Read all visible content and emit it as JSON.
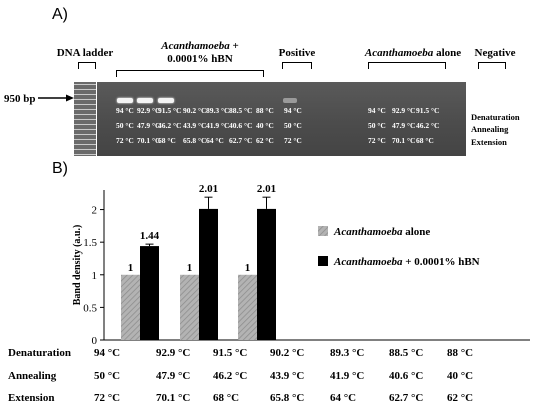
{
  "panel_a": {
    "label": "A)",
    "marker": "950 bp",
    "headers": {
      "ladder": "DNA ladder",
      "treated_line1": "Acanthamoeba",
      "treated_line1_suffix": " +",
      "treated_line2": "0.0001% hBN",
      "positive": "Positive",
      "alone": "Acanthamoeba",
      "alone_suffix": " alone",
      "negative": "Negative"
    },
    "row_labels": [
      "Denaturation",
      "Annealing",
      "Extension"
    ],
    "treated_lanes": {
      "denaturation": [
        "94 °C",
        "92.9 °C",
        "91.5 °C",
        "90.2 °C",
        "89.3 °C",
        "88.5 °C",
        "88 °C"
      ],
      "annealing": [
        "50 °C",
        "47.9 °C",
        "46.2 °C",
        "43.9 °C",
        "41.9 °C",
        "40.6 °C",
        "40 °C"
      ],
      "extension": [
        "72 °C",
        "70.1 °C",
        "68 °C",
        "65.8 °C",
        "64 °C",
        "62.7 °C",
        "62 °C"
      ]
    },
    "positive_lane": [
      "94 °C",
      "50 °C",
      "72 °C"
    ],
    "alone_lanes": {
      "denaturation": [
        "94 °C",
        "92.9 °C",
        "91.5 °C"
      ],
      "annealing": [
        "50 °C",
        "47.9 °C",
        "46.2 °C"
      ],
      "extension": [
        "72 °C",
        "70.1 °C",
        "68 °C"
      ]
    }
  },
  "panel_b": {
    "label": "B)",
    "table_rows": [
      {
        "label": "Denaturation",
        "values": [
          "94 °C",
          "92.9 °C",
          "91.5 °C",
          "90.2 °C",
          "89.3 °C",
          "88.5 °C",
          "88 °C"
        ]
      },
      {
        "label": "Annealing",
        "values": [
          "50 °C",
          "47.9 °C",
          "46.2 °C",
          "43.9 °C",
          "41.9 °C",
          "40.6 °C",
          "40 °C"
        ]
      },
      {
        "label": "Extension",
        "values": [
          "72 °C",
          "70.1 °C",
          "68 °C",
          "65.8 °C",
          "64 °C",
          "62.7 °C",
          "62 °C"
        ]
      }
    ]
  },
  "chart_data": {
    "type": "bar",
    "categories": [
      "94 °C",
      "92.9 °C",
      "91.5 °C",
      "90.2 °C",
      "89.3 °C",
      "88.5 °C",
      "88 °C"
    ],
    "series": [
      {
        "name": "Acanthamoeba alone",
        "values": [
          1,
          1,
          1,
          0,
          0,
          0,
          0
        ],
        "color": "#a6a6a6",
        "pattern": "hatched"
      },
      {
        "name": "Acanthamoeba + 0.0001% hBN",
        "values": [
          1.44,
          2.01,
          2.01,
          0,
          0,
          0,
          0
        ],
        "color": "#000000",
        "error": [
          0.03,
          0.18,
          0.18,
          0,
          0,
          0,
          0
        ]
      }
    ],
    "data_labels": [
      [
        "1",
        "1",
        "1"
      ],
      [
        "1.44",
        "2.01",
        "2.01"
      ]
    ],
    "ylabel": "Band density (a.u.)",
    "ylim": [
      0,
      2.3
    ],
    "yticks": [
      0,
      0.5,
      1,
      1.5,
      2
    ],
    "ytick_labels": [
      "0",
      "0.5",
      "1",
      "1.5",
      "2"
    ],
    "legend": [
      {
        "italic": "Acanthamoeba",
        "rest": " alone"
      },
      {
        "italic": "Acanthamoeba",
        "rest": " + 0.0001% hBN"
      }
    ],
    "legend_position": "right",
    "grid": false
  }
}
